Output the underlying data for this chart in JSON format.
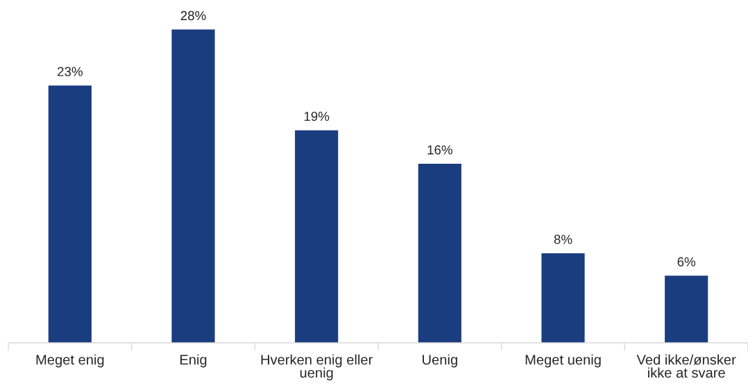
{
  "chart_data": {
    "type": "bar",
    "categories": [
      "Meget enig",
      "Enig",
      "Hverken enig eller\nuenig",
      "Uenig",
      "Meget uenig",
      "Ved ikke/ønsker\nikke at svare"
    ],
    "values": [
      23,
      28,
      19,
      16,
      8,
      6
    ],
    "value_labels": [
      "23%",
      "28%",
      "19%",
      "16%",
      "8%",
      "6%"
    ],
    "color": "#1a3d80",
    "tick_labels": "x"
  }
}
